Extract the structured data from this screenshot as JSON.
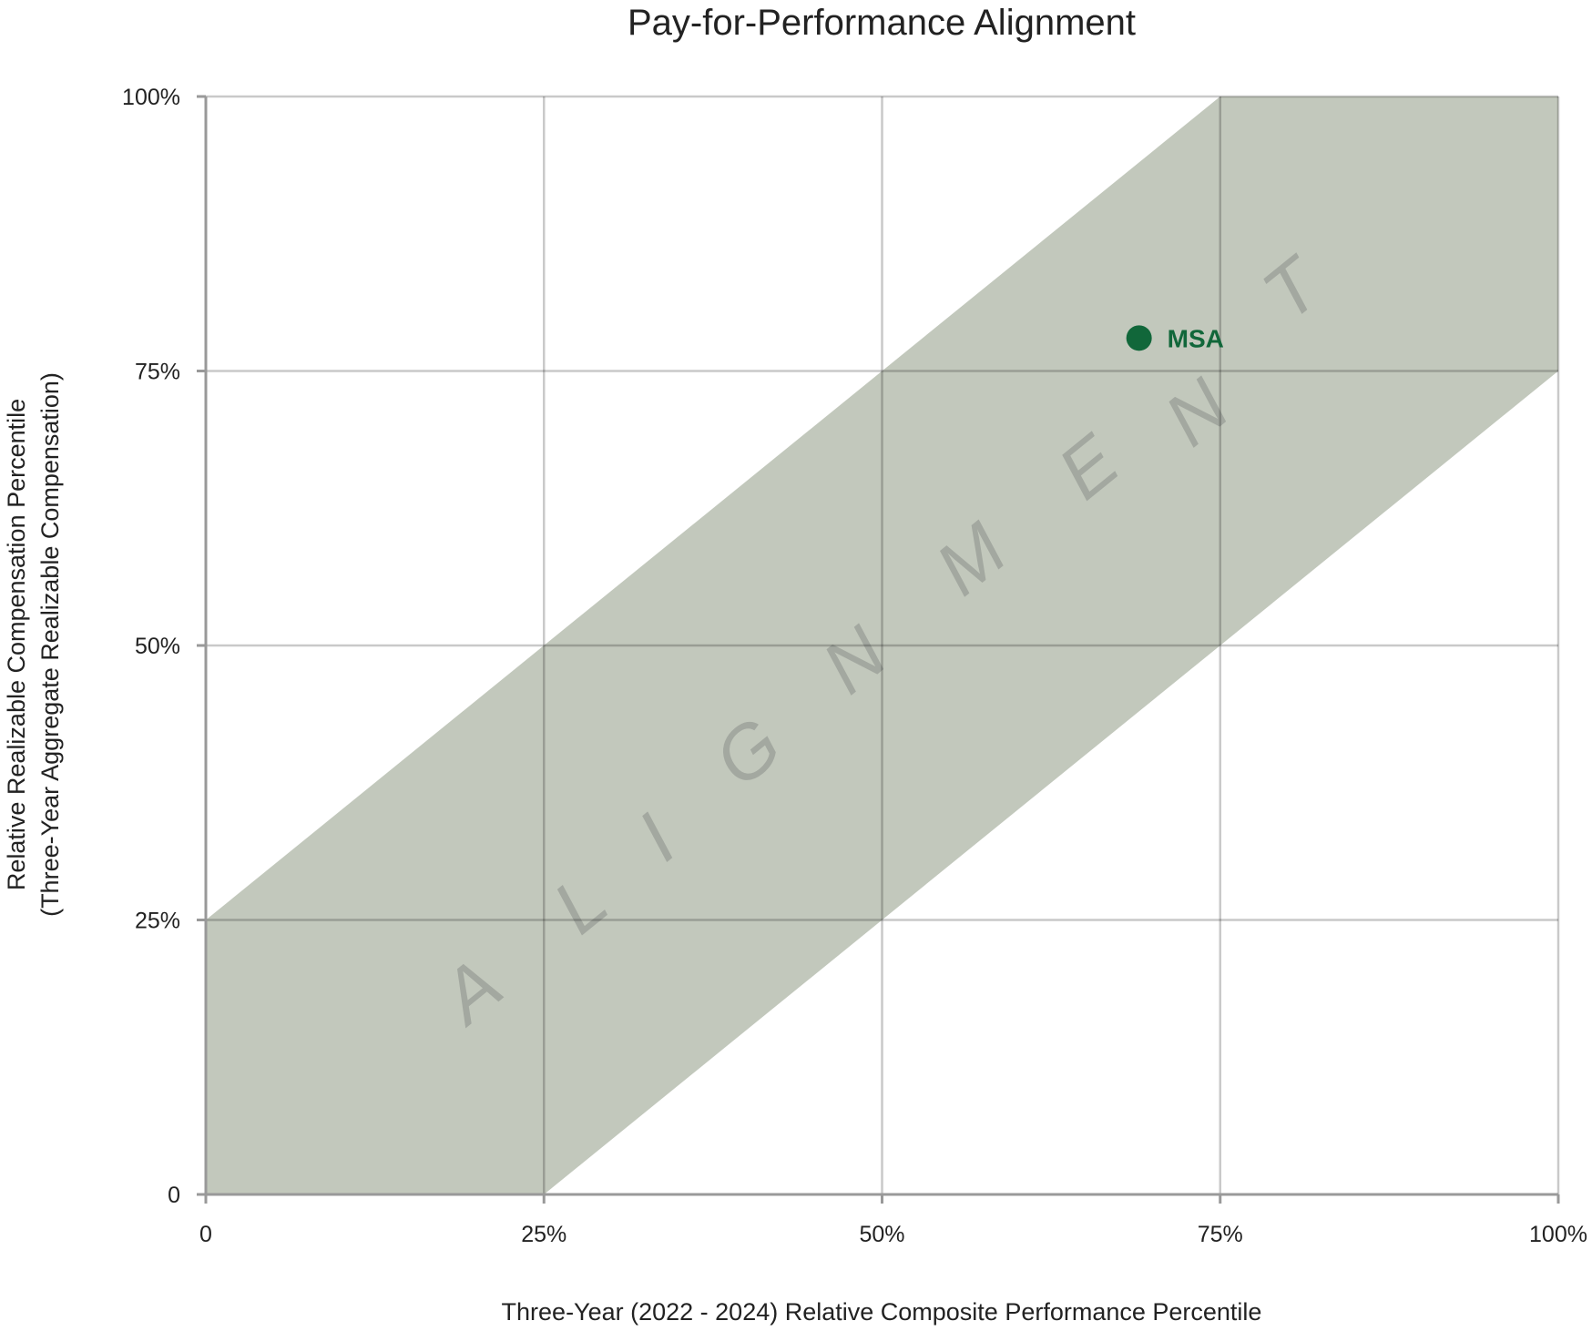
{
  "chart_data": {
    "type": "scatter",
    "title": "Pay-for-Performance Alignment",
    "xlabel": "Three-Year (2022 - 2024) Relative Composite Performance Percentile",
    "ylabel": [
      "Relative Realizable Compensation Percentile",
      "(Three-Year Aggregate Realizable Compensation)"
    ],
    "xlim": [
      0,
      100
    ],
    "ylim": [
      0,
      100
    ],
    "x_ticks": [
      0,
      25,
      50,
      75,
      100
    ],
    "y_ticks": [
      0,
      25,
      50,
      75,
      100
    ],
    "x_tick_labels": [
      "0",
      "25%",
      "50%",
      "75%",
      "100%"
    ],
    "y_tick_labels": [
      "0",
      "25%",
      "50%",
      "75%",
      "100%"
    ],
    "grid": true,
    "band": {
      "label": "ALIGNMENT",
      "lower_offset": -25,
      "upper_offset": 25,
      "color": "#c2c8bc"
    },
    "points": [
      {
        "label": "MSA",
        "x": 69,
        "y": 78,
        "color": "#11673a"
      }
    ]
  }
}
